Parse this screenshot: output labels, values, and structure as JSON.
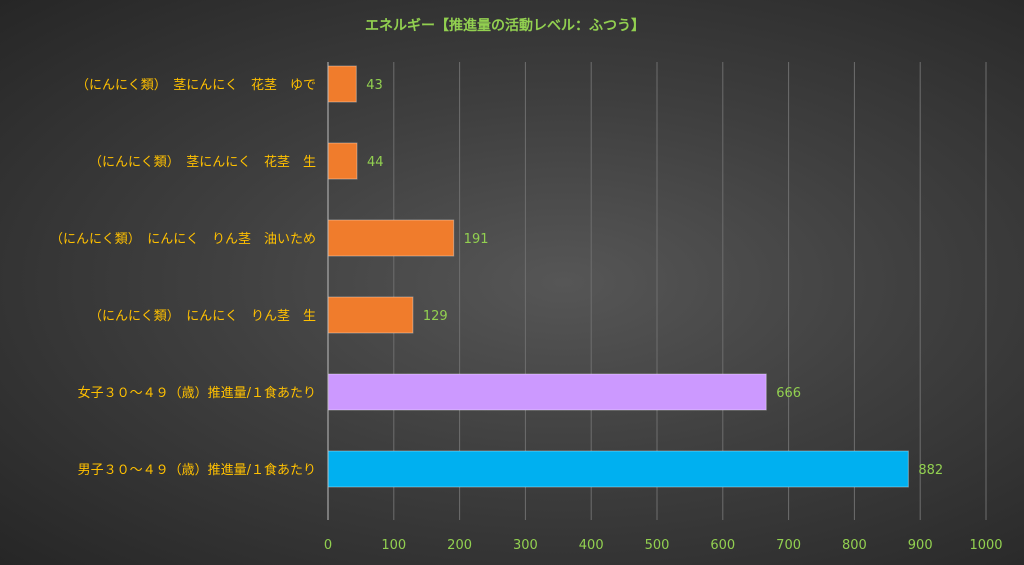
{
  "chart_data": {
    "type": "bar",
    "orientation": "horizontal",
    "title": "エネルギー【推進量の活動レベル：ふつう】",
    "categories": [
      "（にんにく類）　茎にんにく　花茎　ゆで",
      "（にんにく類）　茎にんにく　花茎　生",
      "（にんにく類）　にんにく　りん茎　油いため",
      "（にんにく類）　にんにく　りん茎　生",
      "女子３０～４９（歳）推進量/１食あたり",
      "男子３０～４９（歳）推進量/１食あたり"
    ],
    "values": [
      43,
      44,
      191,
      129,
      666,
      882
    ],
    "bar_colors": [
      "#f07c2c",
      "#f07c2c",
      "#f07c2c",
      "#f07c2c",
      "#cc99ff",
      "#00b0f0"
    ],
    "xlim": [
      0,
      1000
    ],
    "xticks": [
      0,
      100,
      200,
      300,
      400,
      500,
      600,
      700,
      800,
      900,
      1000
    ],
    "grid": true,
    "legend": "none",
    "colors": {
      "title": "#92d050",
      "category_text": "#ffc000",
      "tick_text": "#92d050",
      "value_label": "#92d050",
      "gridline": "#6e6e6e",
      "axis": "#bfbfbf"
    }
  }
}
